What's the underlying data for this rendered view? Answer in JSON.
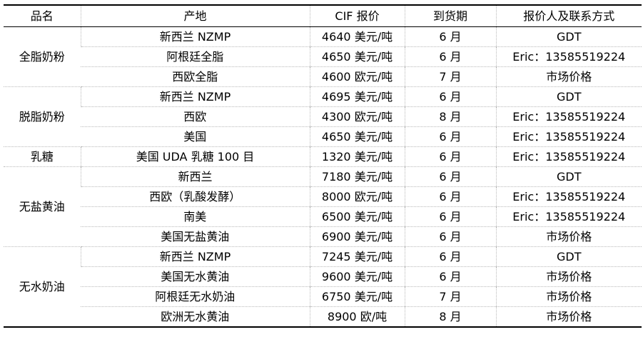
{
  "headers": [
    "品名",
    "产地",
    "CIF 报价",
    "到货期",
    "报价人及联系方式"
  ],
  "groups": [
    {
      "name": "全脂奶粉",
      "rows": [
        {
          "origin": "新西兰 NZMP",
          "price": "4640 美元/吨",
          "arrival": "6 月",
          "contact": "GDT"
        },
        {
          "origin": "阿根廷全脂",
          "price": "4650 美元/吨",
          "arrival": "6 月",
          "contact": "Eric：13585519224"
        },
        {
          "origin": "西欧全脂",
          "price": "4600 欧元/吨",
          "arrival": "7 月",
          "contact": "市场价格"
        }
      ]
    },
    {
      "name": "脱脂奶粉",
      "rows": [
        {
          "origin": "新西兰 NZMP",
          "price": "4695 美元/吨",
          "arrival": "6 月",
          "contact": "GDT"
        },
        {
          "origin": "西欧",
          "price": "4300 欧元/吨",
          "arrival": "8 月",
          "contact": "Eric：13585519224"
        },
        {
          "origin": "美国",
          "price": "4650 美元/吨",
          "arrival": "6 月",
          "contact": "Eric：13585519224"
        }
      ]
    },
    {
      "name": "乳糖",
      "rows": [
        {
          "origin": "美国 UDA 乳糖 100 目",
          "price": "1320 美元/吨",
          "arrival": "6 月",
          "contact": "Eric：13585519224"
        }
      ]
    },
    {
      "name": "无盐黄油",
      "rows": [
        {
          "origin": "新西兰",
          "price": "7180 美元/吨",
          "arrival": "6 月",
          "contact": "GDT"
        },
        {
          "origin": "西欧（乳酸发酵）",
          "price": "8000 欧元/吨",
          "arrival": "6 月",
          "contact": "Eric：13585519224"
        },
        {
          "origin": "南美",
          "price": "6500 美元/吨",
          "arrival": "6 月",
          "contact": "Eric：13585519224"
        },
        {
          "origin": "美国无盐黄油",
          "price": "6900 美元/吨",
          "arrival": "6 月",
          "contact": "市场价格"
        }
      ]
    },
    {
      "name": "无水奶油",
      "rows": [
        {
          "origin": "新西兰 NZMP",
          "price": "7245 美元/吨",
          "arrival": "6 月",
          "contact": "GDT"
        },
        {
          "origin": "美国无水黄油",
          "price": "9600 美元/吨",
          "arrival": "6 月",
          "contact": "市场价格"
        },
        {
          "origin": "阿根廷无水奶油",
          "price": "6750 美元/吨",
          "arrival": "7 月",
          "contact": "市场价格"
        },
        {
          "origin": "欧洲无水黄油",
          "price": "8900 欧/吨",
          "arrival": "8 月",
          "contact": "市场价格"
        }
      ]
    }
  ]
}
